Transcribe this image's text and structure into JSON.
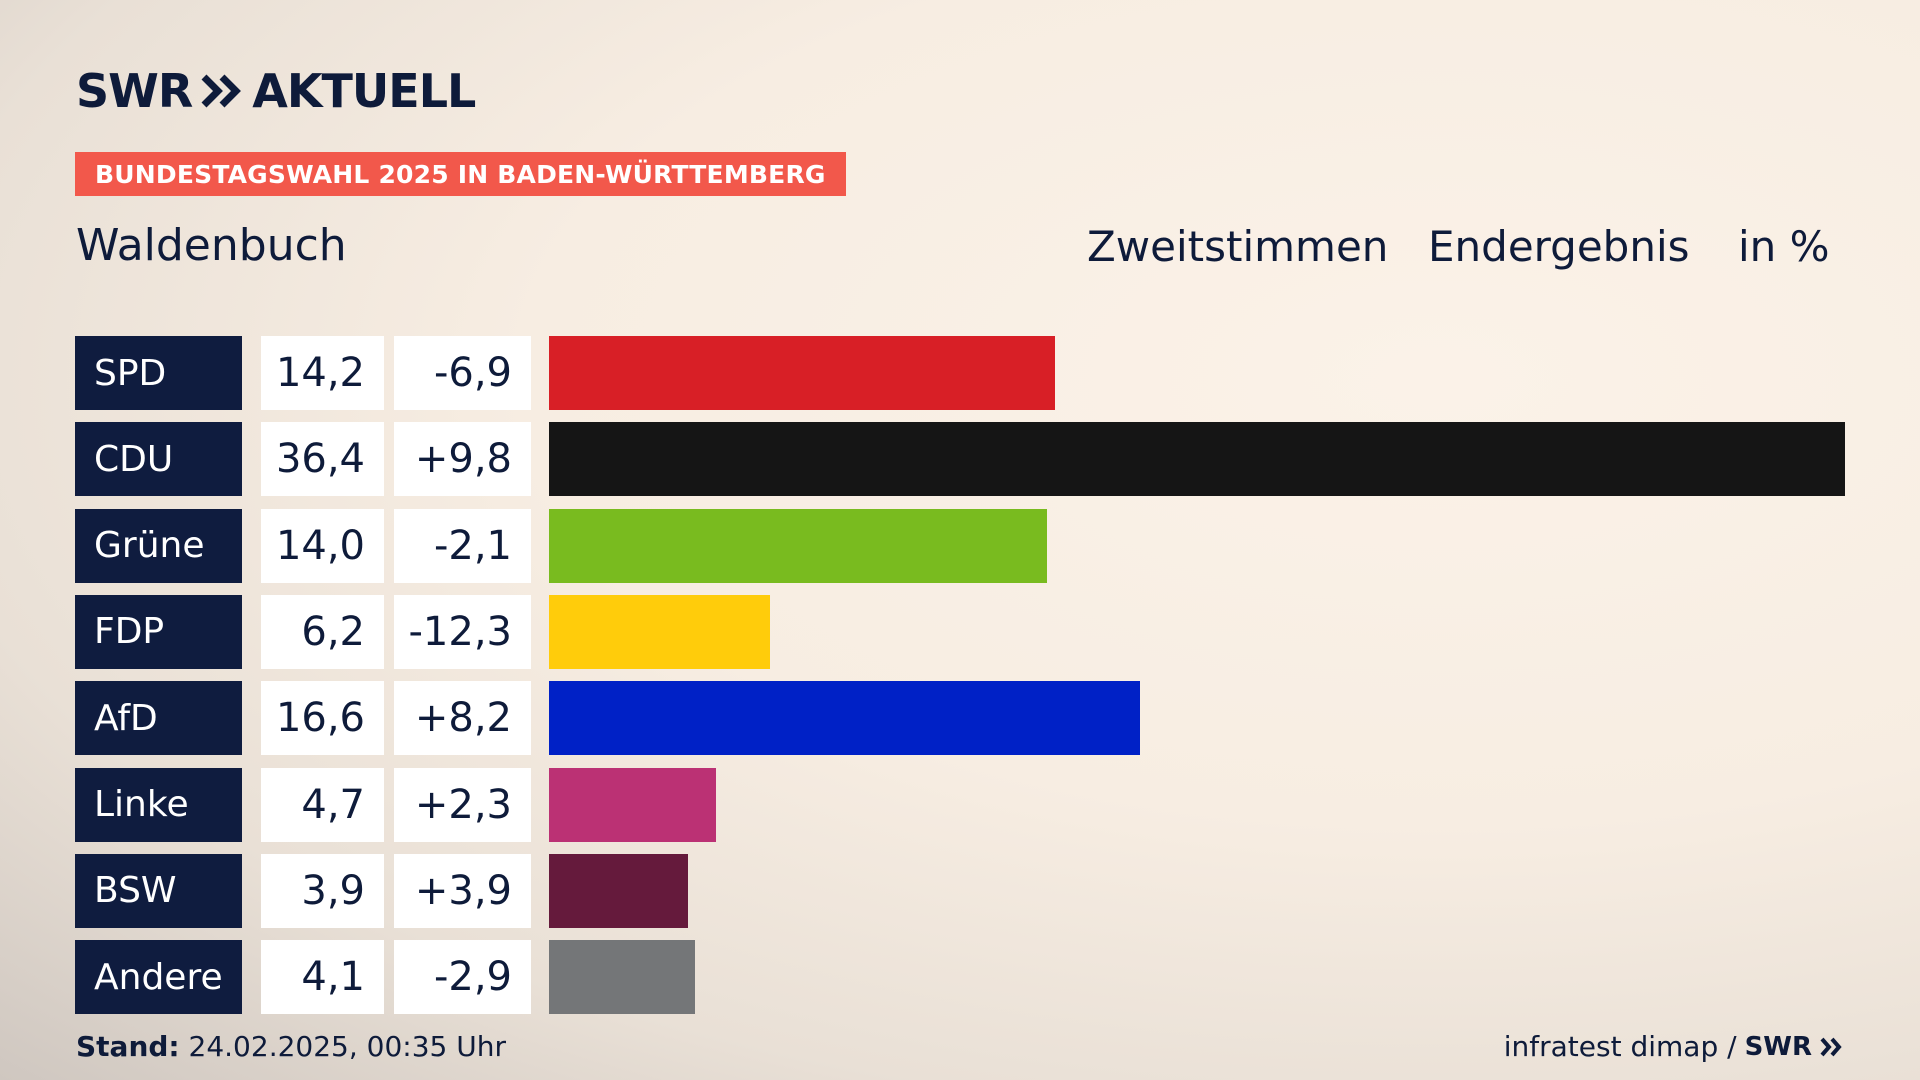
{
  "header": {
    "logo_swr": "SWR",
    "logo_aktuell": "AKTUELL",
    "kicker": "BUNDESTAGSWAHL 2025 IN BADEN-WÜRTTEMBERG",
    "place": "Waldenbuch",
    "col_type": "Zweitstimmen",
    "col_status": "Endergebnis",
    "col_unit": "in %"
  },
  "chart_data": {
    "type": "bar",
    "orientation": "horizontal",
    "categories": [
      "SPD",
      "CDU",
      "Grüne",
      "FDP",
      "AfD",
      "Linke",
      "BSW",
      "Andere"
    ],
    "values": [
      14.2,
      36.4,
      14.0,
      6.2,
      16.6,
      4.7,
      3.9,
      4.1
    ],
    "value_labels": [
      "14,2",
      "36,4",
      "14,0",
      "6,2",
      "16,6",
      "4,7",
      "3,9",
      "4,1"
    ],
    "diff_labels": [
      "-6,9",
      "+9,8",
      "-2,1",
      "-12,3",
      "+8,2",
      "+2,3",
      "+3,9",
      "-2,9"
    ],
    "colors": [
      "#d81f26",
      "#151515",
      "#79bb1f",
      "#ffcc0b",
      "#0021c6",
      "#bb3174",
      "#651a3c",
      "#747678"
    ],
    "xlim": [
      0,
      36.4
    ],
    "grid": false,
    "legend": "none"
  },
  "footer": {
    "stand_label": "Stand:",
    "stand_value": "24.02.2025, 00:35 Uhr",
    "source": "infratest dimap /",
    "source_logo": "SWR"
  }
}
